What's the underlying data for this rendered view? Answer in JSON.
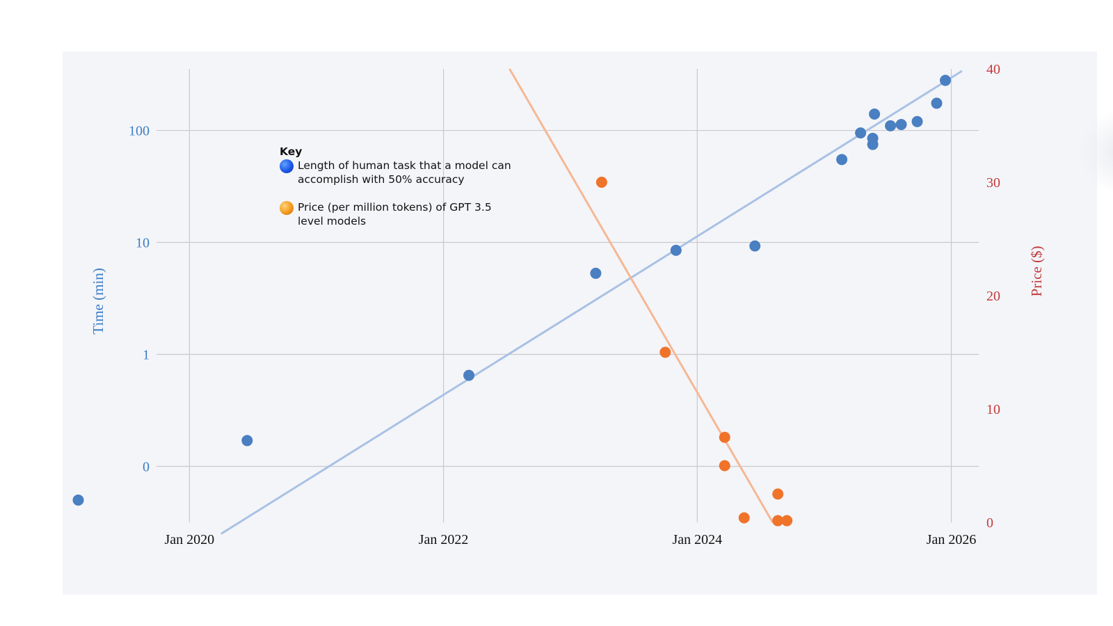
{
  "chart_data": {
    "type": "scatter",
    "title": "",
    "x_axis": {
      "type": "date",
      "ticks": [
        "Jan 2020",
        "Jan 2022",
        "Jan 2024",
        "Jan 2026"
      ],
      "range": [
        "2019-01-01",
        "2026-03-15"
      ]
    },
    "y_left": {
      "label": "Time (min)",
      "scale": "log",
      "ticks": [
        "0",
        "1",
        "10",
        "100"
      ],
      "range_log10": [
        -1.5,
        2.55
      ],
      "color": "#3a7cc4"
    },
    "y_right": {
      "label": "Price ($)",
      "scale": "linear",
      "ticks": [
        "0",
        "10",
        "20",
        "30",
        "40"
      ],
      "range": [
        0,
        40
      ],
      "color": "#c23a3a"
    },
    "grid": true,
    "legend": {
      "placement": "upper-left",
      "title": "Key",
      "entries": [
        {
          "label": "Length of human task that a model can accomplish with 50% accuracy",
          "color": "blue"
        },
        {
          "label": "Price (per million tokens) of GPT 3.5 level models",
          "color": "orange"
        }
      ]
    },
    "series": [
      {
        "name": "Length of human task that a model can accomplish with 50% accuracy",
        "axis": "left",
        "color": "#4a7fc1",
        "points": [
          {
            "x": "2019-02-15",
            "y": 0.05
          },
          {
            "x": "2020-06-15",
            "y": 0.17
          },
          {
            "x": "2022-03-15",
            "y": 0.65
          },
          {
            "x": "2023-03-15",
            "y": 5.3
          },
          {
            "x": "2023-11-01",
            "y": 8.5
          },
          {
            "x": "2024-06-15",
            "y": 9.3
          },
          {
            "x": "2025-02-20",
            "y": 55
          },
          {
            "x": "2025-04-15",
            "y": 95
          },
          {
            "x": "2025-05-20",
            "y": 85
          },
          {
            "x": "2025-05-20",
            "y": 75
          },
          {
            "x": "2025-05-25",
            "y": 140
          },
          {
            "x": "2025-07-10",
            "y": 110
          },
          {
            "x": "2025-08-10",
            "y": 113
          },
          {
            "x": "2025-09-25",
            "y": 120
          },
          {
            "x": "2025-11-20",
            "y": 175
          },
          {
            "x": "2025-12-15",
            "y": 280
          }
        ],
        "trendline": {
          "from": {
            "x": "2020-04-01",
            "y": 0.025
          },
          "to": {
            "x": "2026-02-01",
            "y": 340
          }
        }
      },
      {
        "name": "Price (per million tokens) of GPT 3.5 level models",
        "axis": "right",
        "color": "#f0732a",
        "points": [
          {
            "x": "2023-04-01",
            "y": 30
          },
          {
            "x": "2023-10-01",
            "y": 15
          },
          {
            "x": "2024-03-20",
            "y": 7.5
          },
          {
            "x": "2024-03-20",
            "y": 5
          },
          {
            "x": "2024-08-20",
            "y": 2.5
          },
          {
            "x": "2024-08-20",
            "y": 0.15
          },
          {
            "x": "2024-09-15",
            "y": 0.15
          },
          {
            "x": "2024-05-15",
            "y": 0.4
          }
        ],
        "trendline": {
          "from": {
            "x": "2022-07-10",
            "y": 40
          },
          "to": {
            "x": "2024-08-05",
            "y": 0
          }
        }
      }
    ]
  }
}
